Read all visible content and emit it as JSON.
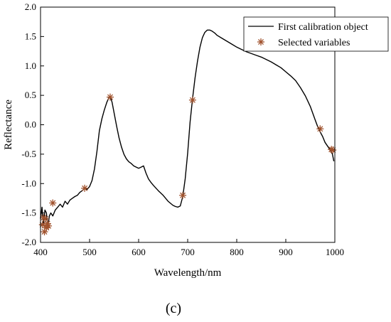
{
  "chart_data": {
    "type": "line",
    "xlabel": "Wavelength/nm",
    "ylabel": "Reflectance",
    "xlim": [
      400,
      1000
    ],
    "ylim": [
      -2.0,
      2.0
    ],
    "xticks": [
      400,
      500,
      600,
      700,
      800,
      900,
      1000
    ],
    "yticks": [
      -2.0,
      -1.5,
      -1.0,
      -0.5,
      0.0,
      0.5,
      1.0,
      1.5,
      2.0
    ],
    "grid": false,
    "legend_position": "top-right",
    "series": [
      {
        "name": "First calibration object",
        "style": "line",
        "color": "#000000",
        "x": [
          400,
          403,
          406,
          409,
          412,
          415,
          418,
          421,
          425,
          430,
          435,
          440,
          445,
          450,
          455,
          460,
          465,
          470,
          475,
          480,
          485,
          490,
          495,
          500,
          505,
          510,
          515,
          520,
          525,
          530,
          535,
          540,
          543,
          546,
          550,
          555,
          560,
          565,
          570,
          575,
          580,
          585,
          590,
          595,
          600,
          605,
          610,
          615,
          620,
          625,
          630,
          640,
          650,
          660,
          670,
          675,
          680,
          685,
          690,
          695,
          700,
          705,
          710,
          715,
          720,
          725,
          730,
          735,
          740,
          745,
          750,
          755,
          760,
          770,
          780,
          790,
          800,
          810,
          820,
          830,
          840,
          850,
          860,
          870,
          880,
          890,
          900,
          910,
          920,
          930,
          940,
          950,
          960,
          965,
          970,
          975,
          980,
          985,
          990,
          995,
          998
        ],
        "y": [
          -1.6,
          -1.4,
          -1.7,
          -1.45,
          -1.5,
          -1.75,
          -1.55,
          -1.5,
          -1.55,
          -1.45,
          -1.4,
          -1.35,
          -1.4,
          -1.3,
          -1.35,
          -1.28,
          -1.25,
          -1.22,
          -1.2,
          -1.15,
          -1.12,
          -1.08,
          -1.1,
          -1.05,
          -0.95,
          -0.75,
          -0.45,
          -0.1,
          0.1,
          0.25,
          0.38,
          0.47,
          0.46,
          0.38,
          0.2,
          -0.02,
          -0.22,
          -0.38,
          -0.5,
          -0.58,
          -0.63,
          -0.66,
          -0.7,
          -0.72,
          -0.74,
          -0.72,
          -0.7,
          -0.82,
          -0.92,
          -0.98,
          -1.03,
          -1.12,
          -1.2,
          -1.3,
          -1.37,
          -1.39,
          -1.4,
          -1.38,
          -1.22,
          -0.92,
          -0.48,
          0.05,
          0.45,
          0.8,
          1.08,
          1.32,
          1.48,
          1.57,
          1.61,
          1.61,
          1.59,
          1.56,
          1.52,
          1.47,
          1.42,
          1.37,
          1.32,
          1.28,
          1.24,
          1.21,
          1.18,
          1.15,
          1.11,
          1.07,
          1.02,
          0.97,
          0.9,
          0.83,
          0.75,
          0.63,
          0.49,
          0.31,
          0.08,
          -0.03,
          -0.12,
          -0.2,
          -0.3,
          -0.36,
          -0.42,
          -0.5,
          -0.62
        ]
      },
      {
        "name": "Selected variables",
        "style": "marker",
        "color": "#a0522d",
        "x": [
          404,
          406,
          408,
          410,
          412,
          414,
          416,
          425,
          490,
          542,
          690,
          710,
          970,
          993,
          996
        ],
        "y": [
          -1.7,
          -1.58,
          -1.82,
          -1.6,
          -1.75,
          -1.68,
          -1.72,
          -1.33,
          -1.08,
          0.47,
          -1.2,
          0.42,
          -0.07,
          -0.42,
          -0.43
        ]
      }
    ]
  },
  "figure": {
    "panel_label": "(c)"
  }
}
